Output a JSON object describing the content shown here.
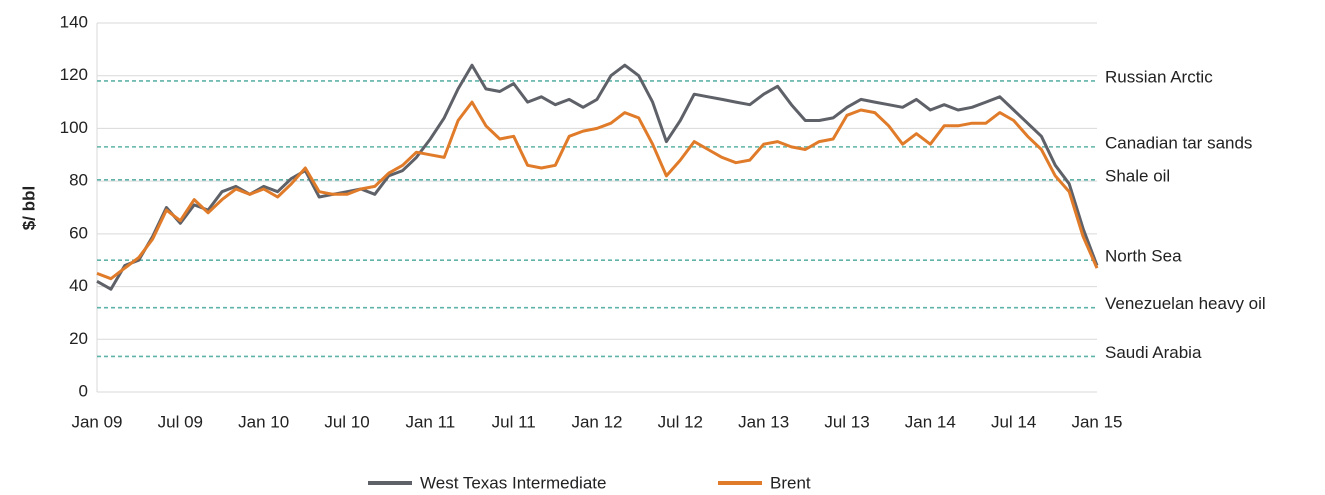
{
  "chart_data": {
    "type": "line",
    "y_label": "$/ bbl",
    "categories": [
      "Jan 09",
      null,
      null,
      null,
      null,
      null,
      "Jul 09",
      null,
      null,
      null,
      null,
      null,
      "Jan 10",
      null,
      null,
      null,
      null,
      null,
      "Jul 10",
      null,
      null,
      null,
      null,
      null,
      "Jan 11",
      null,
      null,
      null,
      null,
      null,
      "Jul 11",
      null,
      null,
      null,
      null,
      null,
      "Jan 12",
      null,
      null,
      null,
      null,
      null,
      "Jul 12",
      null,
      null,
      null,
      null,
      null,
      "Jan 13",
      null,
      null,
      null,
      null,
      null,
      "Jul 13",
      null,
      null,
      null,
      null,
      null,
      "Jan 14",
      null,
      null,
      null,
      null,
      null,
      "Jul 14",
      null,
      null,
      null,
      null,
      null,
      "Jan 15"
    ],
    "series": [
      {
        "name": "West Texas Intermediate",
        "color": "#5f6169",
        "values": [
          42,
          39,
          48,
          50,
          59,
          70,
          64,
          71,
          69,
          76,
          78,
          75,
          78,
          76,
          81,
          84,
          74,
          75,
          76,
          77,
          75,
          82,
          84,
          89,
          96,
          104,
          115,
          124,
          115,
          114,
          117,
          110,
          112,
          109,
          111,
          108,
          111,
          120,
          124,
          120,
          110,
          95,
          103,
          113,
          112,
          111,
          110,
          109,
          113,
          116,
          109,
          103,
          103,
          104,
          108,
          111,
          110,
          109,
          108,
          111,
          107,
          109,
          107,
          108,
          110,
          112,
          107,
          102,
          97,
          86,
          79,
          62,
          48
        ]
      },
      {
        "name": "Brent",
        "color": "#e07b2a",
        "values": [
          45,
          43,
          47,
          51,
          58,
          69,
          65,
          73,
          68,
          73,
          77,
          75,
          77,
          74,
          79,
          85,
          76,
          75,
          75,
          77,
          78,
          83,
          86,
          91,
          90,
          89,
          103,
          110,
          101,
          96,
          97,
          86,
          85,
          86,
          97,
          99,
          100,
          102,
          106,
          104,
          94,
          82,
          88,
          95,
          92,
          89,
          87,
          88,
          94,
          95,
          93,
          92,
          95,
          96,
          105,
          107,
          106,
          101,
          94,
          98,
          94,
          101,
          101,
          102,
          102,
          106,
          103,
          97,
          92,
          82,
          76,
          59,
          47
        ]
      }
    ],
    "reference_lines": [
      {
        "label": "Russian Arctic",
        "value": 118
      },
      {
        "label": "Canadian tar sands",
        "value": 93
      },
      {
        "label": "Shale oil",
        "value": 80.5
      },
      {
        "label": "North Sea",
        "value": 50
      },
      {
        "label": "Venezuelan heavy oil",
        "value": 32
      },
      {
        "label": "Saudi Arabia",
        "value": 13.5
      }
    ],
    "reference_color": "#5fb3a8",
    "ylim": [
      0,
      140
    ],
    "yticks": [
      0,
      20,
      40,
      60,
      80,
      100,
      120,
      140
    ],
    "grid": true
  }
}
